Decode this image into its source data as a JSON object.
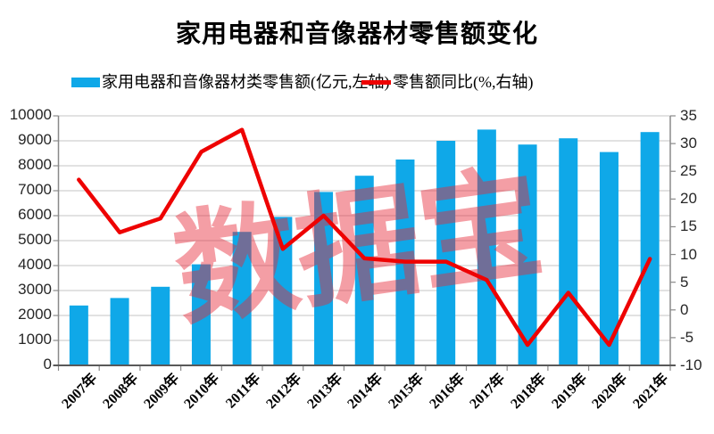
{
  "title": "家用电器和音像器材零售额变化",
  "watermark": {
    "text": "数据宝",
    "color": "rgba(230,40,55,0.45)"
  },
  "colors": {
    "bar": "#0FA8E8",
    "line": "#EE0202",
    "grid": "#C6C6C6",
    "axis": "#8A8A8A",
    "axis_bottom": "#595959",
    "tick_text": "#262626"
  },
  "chart_data": {
    "type": "combo-bar-line",
    "title": "家用电器和音像器材零售额变化",
    "categories": [
      "2007年",
      "2008年",
      "2009年",
      "2010年",
      "2011年",
      "2012年",
      "2013年",
      "2014年",
      "2015年",
      "2016年",
      "2017年",
      "2018年",
      "2019年",
      "2020年",
      "2021年"
    ],
    "series": [
      {
        "name": "家用电器和音像器材类零售额(亿元,左轴)",
        "type": "bar",
        "axis": "left",
        "color": "#0FA8E8",
        "values": [
          2400,
          2700,
          3150,
          4050,
          5350,
          5950,
          6950,
          7600,
          8250,
          9000,
          9450,
          8850,
          9100,
          8550,
          9350
        ]
      },
      {
        "name": "零售额同比(%,右轴)",
        "type": "line",
        "axis": "right",
        "color": "#EE0202",
        "values": [
          23.5,
          14,
          16.5,
          28.5,
          32.5,
          11,
          17,
          9.3,
          8.7,
          8.7,
          5.4,
          -6.3,
          3.1,
          -6.3,
          9.2
        ]
      }
    ],
    "left_axis": {
      "min": 0,
      "max": 10000,
      "step": 1000,
      "tick_labels": [
        "0",
        "1000",
        "2000",
        "3000",
        "4000",
        "5000",
        "6000",
        "7000",
        "8000",
        "9000",
        "10000"
      ]
    },
    "right_axis": {
      "min": -10,
      "max": 35,
      "step": 5,
      "tick_labels": [
        "-10",
        "-5",
        "0",
        "5",
        "10",
        "15",
        "20",
        "25",
        "30",
        "35"
      ]
    },
    "grid": "horizontal",
    "legend_position": "top"
  }
}
